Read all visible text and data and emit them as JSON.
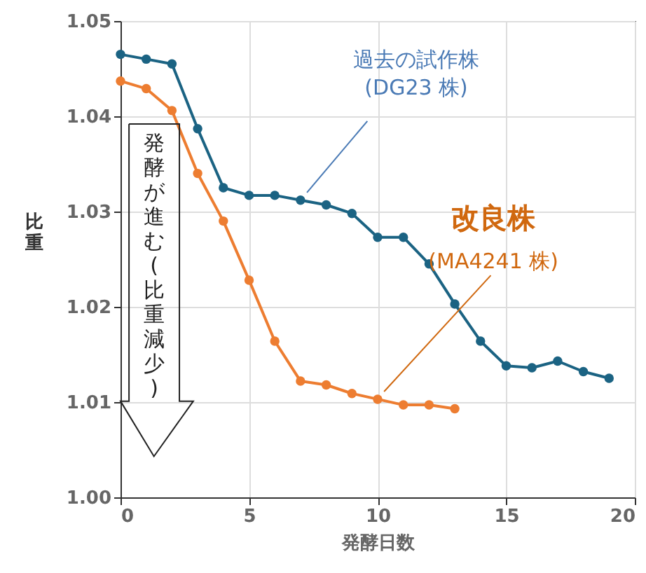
{
  "chart_data": {
    "type": "line",
    "xlabel": "発酵日数",
    "ylabel": "比重",
    "x": [
      0,
      1,
      2,
      3,
      4,
      5,
      6,
      7,
      8,
      9,
      10,
      11,
      12,
      13,
      14,
      15,
      16,
      17,
      18,
      19
    ],
    "series": [
      {
        "color": "#1b6383",
        "values": [
          1.0465,
          1.046,
          1.0455,
          1.0387,
          1.0325,
          1.0317,
          1.0317,
          1.0312,
          1.0307,
          1.0298,
          1.0273,
          1.0273,
          1.0245,
          1.0203,
          1.0164,
          1.0138,
          1.0136,
          1.0143,
          1.0132,
          1.0125
        ]
      },
      {
        "color": "#ed7d31",
        "values": [
          1.0437,
          1.0429,
          1.0406,
          1.034,
          1.029,
          1.0228,
          1.0164,
          1.0122,
          1.0118,
          1.0109,
          1.0103,
          1.0097,
          1.0097,
          1.0093,
          null,
          null,
          null,
          null,
          null,
          null
        ]
      }
    ],
    "annotations": [
      {
        "text": "過去の試作株\n(DG23 株)",
        "x": 7,
        "y": 1.0312
      },
      {
        "text": "改良株\n(MA4241 株)",
        "x": 10,
        "y": 1.0103
      },
      "発酵が進む(比重減少)"
    ],
    "xlim": [
      0,
      20
    ],
    "xticks": [
      0,
      5,
      10,
      15,
      20
    ],
    "ylim": [
      1.0,
      1.05
    ],
    "yticks": [
      {
        "value": 1.0,
        "label": "1.00"
      },
      {
        "value": 1.01,
        "label": "1.01"
      },
      {
        "value": 1.02,
        "label": "1.02"
      },
      {
        "value": 1.03,
        "label": "1.03"
      },
      {
        "value": 1.04,
        "label": "1.04"
      },
      {
        "value": 1.05,
        "label": "1.05"
      }
    ],
    "grid": true,
    "marker": "circle",
    "line_style": "solid"
  }
}
